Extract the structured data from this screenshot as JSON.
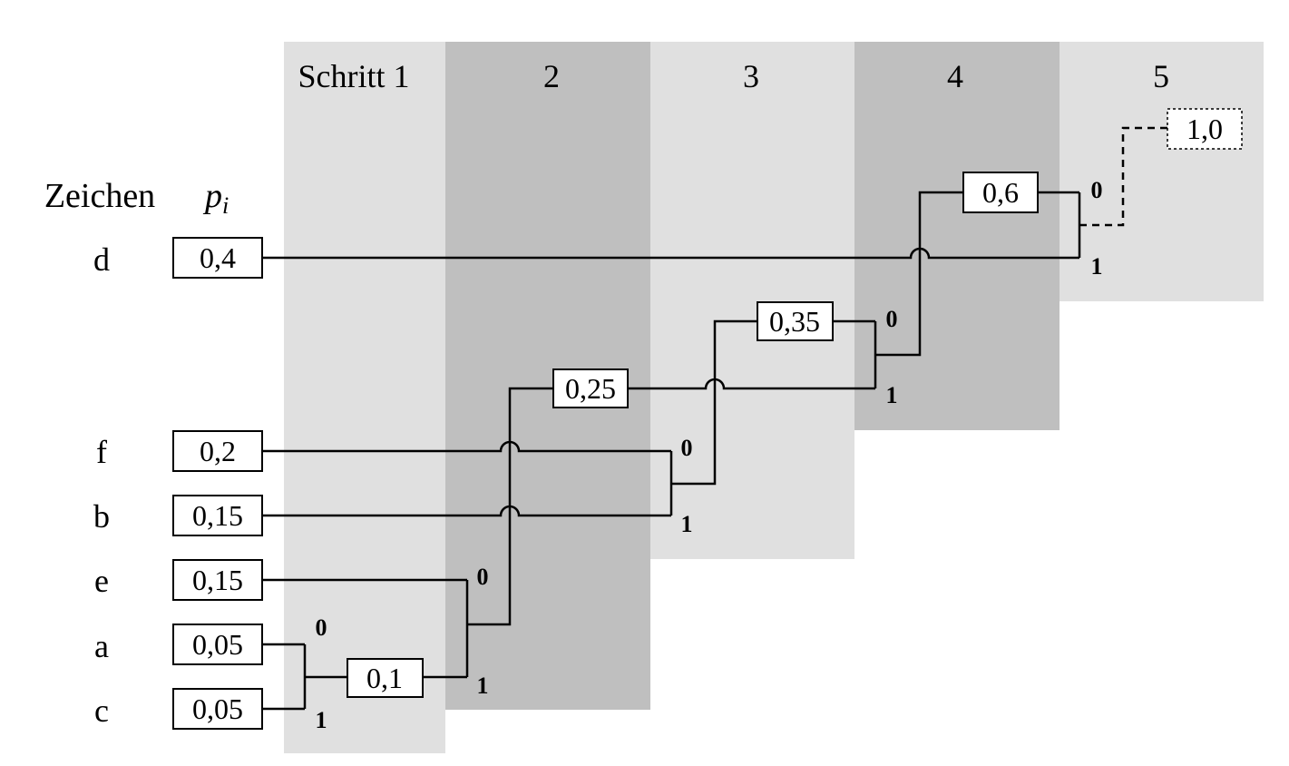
{
  "headers": {
    "symbol_column": "Zeichen",
    "prob_column_base": "p",
    "prob_column_sub": "i"
  },
  "steps": [
    "Schritt 1",
    "2",
    "3",
    "4",
    "5"
  ],
  "symbols": [
    {
      "char": "d",
      "p": "0,4"
    },
    {
      "char": "f",
      "p": "0,2"
    },
    {
      "char": "b",
      "p": "0,15"
    },
    {
      "char": "e",
      "p": "0,15"
    },
    {
      "char": "a",
      "p": "0,05"
    },
    {
      "char": "c",
      "p": "0,05"
    }
  ],
  "merges": [
    {
      "step": "Schritt 1",
      "inputs": [
        "a",
        "c"
      ],
      "result": "0,1"
    },
    {
      "step": "2",
      "inputs": [
        "e",
        "0,1"
      ],
      "result": "0,25"
    },
    {
      "step": "3",
      "inputs": [
        "f",
        "b"
      ],
      "result": "0,35"
    },
    {
      "step": "4",
      "inputs": [
        "0,25",
        "0,35"
      ],
      "result": "0,6"
    },
    {
      "step": "5",
      "inputs": [
        "0,6",
        "d"
      ],
      "result": "1,0"
    }
  ],
  "bits": {
    "upper": "0",
    "lower": "1"
  },
  "colors": {
    "band_light": "#e0e0e0",
    "band_dark": "#bfbfbf",
    "line": "#000000"
  }
}
